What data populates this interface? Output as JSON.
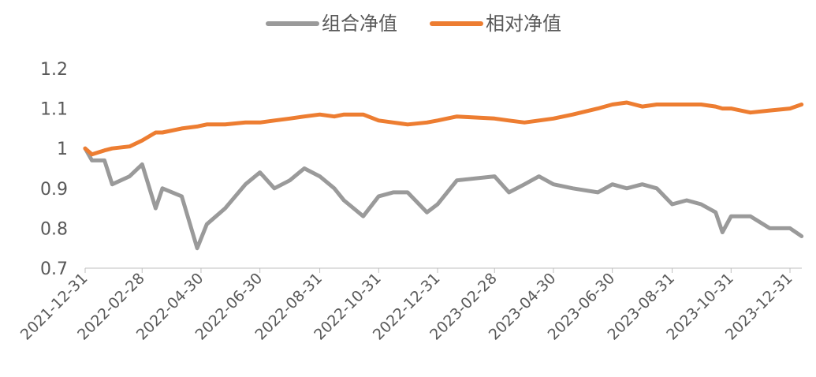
{
  "chart_data": {
    "type": "line",
    "title": "",
    "xlabel": "",
    "ylabel": "",
    "ylim": [
      0.7,
      1.2
    ],
    "yticks": [
      "0.7",
      "0.8",
      "0.9",
      "1",
      "1.1",
      "1.2"
    ],
    "xticks": [
      "2021-12-31",
      "2022-02-28",
      "2022-04-30",
      "2022-06-30",
      "2022-08-31",
      "2022-10-31",
      "2022-12-31",
      "2023-02-28",
      "2023-04-30",
      "2023-06-30",
      "2023-08-31",
      "2023-10-31",
      "2023-12-31"
    ],
    "xlim": [
      "2021-12-31",
      "2024-01-12"
    ],
    "grid": false,
    "legend_position": "top",
    "x": [
      "2021-12-31",
      "2022-01-07",
      "2022-01-20",
      "2022-01-28",
      "2022-02-15",
      "2022-02-28",
      "2022-03-14",
      "2022-03-21",
      "2022-04-10",
      "2022-04-26",
      "2022-05-06",
      "2022-05-25",
      "2022-06-15",
      "2022-06-30",
      "2022-07-15",
      "2022-07-31",
      "2022-08-15",
      "2022-08-31",
      "2022-09-15",
      "2022-09-25",
      "2022-10-15",
      "2022-10-31",
      "2022-11-15",
      "2022-11-30",
      "2022-12-20",
      "2022-12-31",
      "2023-01-20",
      "2023-02-28",
      "2023-03-15",
      "2023-03-31",
      "2023-04-15",
      "2023-04-30",
      "2023-05-20",
      "2023-06-15",
      "2023-06-30",
      "2023-07-15",
      "2023-07-31",
      "2023-08-15",
      "2023-08-31",
      "2023-09-15",
      "2023-09-30",
      "2023-10-15",
      "2023-10-22",
      "2023-10-31",
      "2023-11-20",
      "2023-12-10",
      "2023-12-31",
      "2024-01-12"
    ],
    "series": [
      {
        "name": "组合净值",
        "color": "#9A9A9A",
        "values": [
          1.0,
          0.97,
          0.97,
          0.91,
          0.93,
          0.96,
          0.85,
          0.9,
          0.88,
          0.75,
          0.81,
          0.85,
          0.91,
          0.94,
          0.9,
          0.92,
          0.95,
          0.93,
          0.9,
          0.87,
          0.83,
          0.88,
          0.89,
          0.89,
          0.84,
          0.86,
          0.92,
          0.93,
          0.89,
          0.91,
          0.93,
          0.91,
          0.9,
          0.89,
          0.91,
          0.9,
          0.91,
          0.9,
          0.86,
          0.87,
          0.86,
          0.84,
          0.79,
          0.83,
          0.83,
          0.8,
          0.8,
          0.78
        ]
      },
      {
        "name": "相对净值",
        "color": "#ED7D31",
        "values": [
          1.0,
          0.985,
          0.995,
          1.0,
          1.005,
          1.02,
          1.04,
          1.04,
          1.05,
          1.055,
          1.06,
          1.06,
          1.065,
          1.065,
          1.07,
          1.075,
          1.08,
          1.085,
          1.08,
          1.085,
          1.085,
          1.07,
          1.065,
          1.06,
          1.065,
          1.07,
          1.08,
          1.075,
          1.07,
          1.065,
          1.07,
          1.075,
          1.085,
          1.1,
          1.11,
          1.115,
          1.105,
          1.11,
          1.11,
          1.11,
          1.11,
          1.105,
          1.1,
          1.1,
          1.09,
          1.095,
          1.1,
          1.11
        ]
      }
    ]
  }
}
